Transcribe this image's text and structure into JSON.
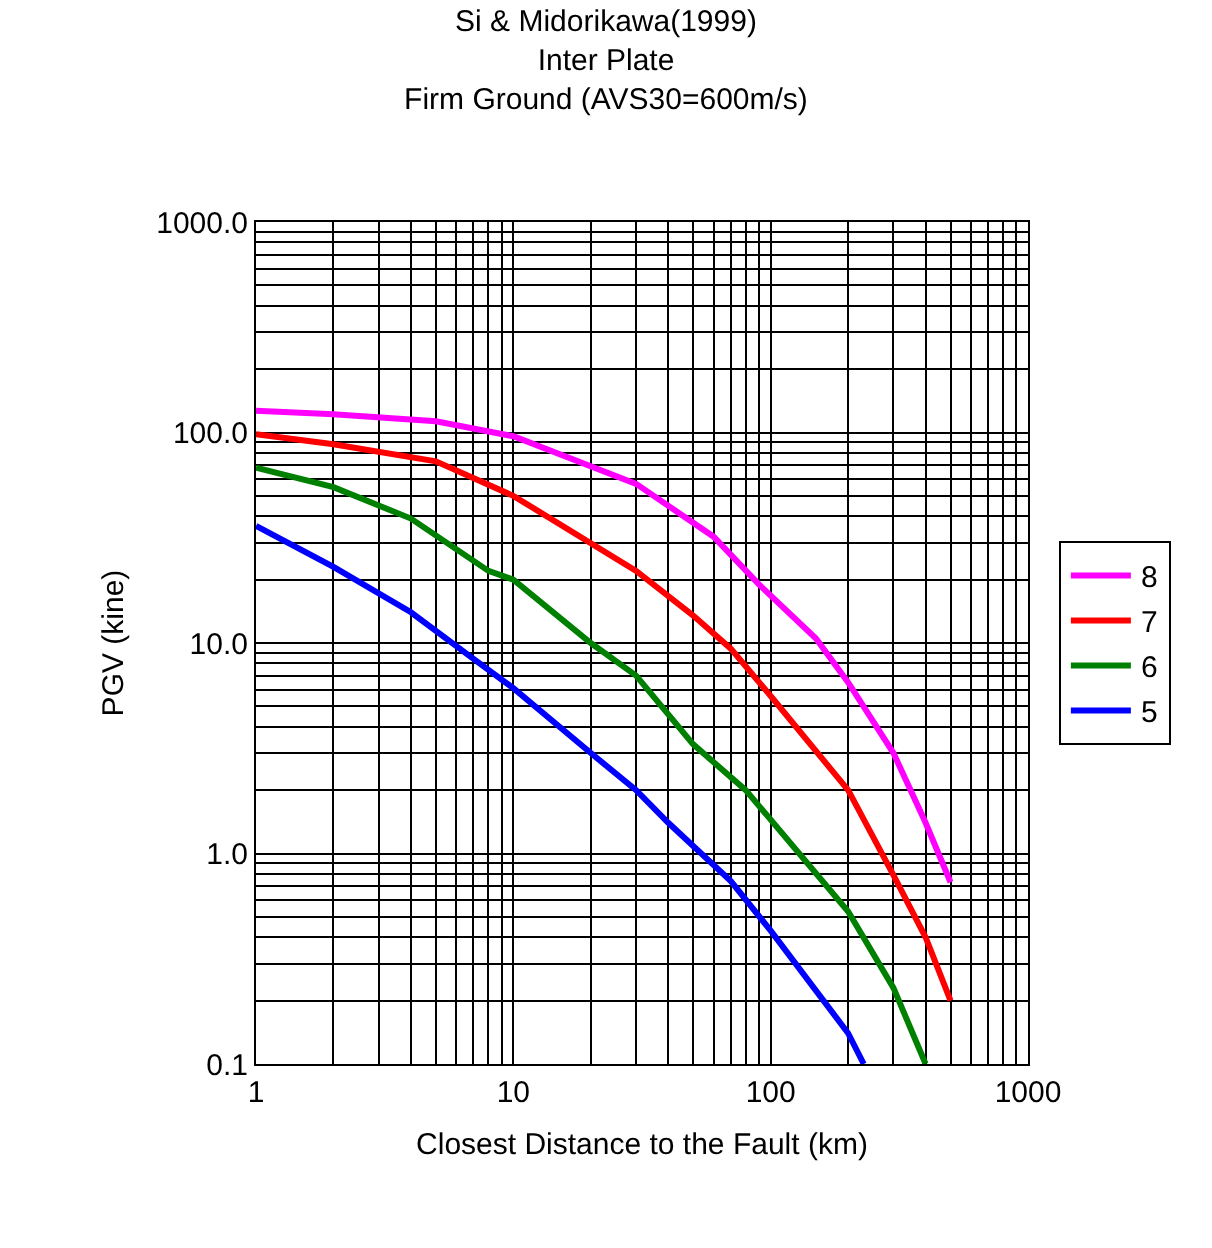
{
  "chart_data": {
    "type": "line",
    "title": "Si & Midorikawa(1999)\nInter Plate\nFirm Ground (AVS30=600m/s)",
    "xlabel": "Closest Distance to the Fault (km)",
    "ylabel": "PGV (kine)",
    "log": "xy",
    "grid": true,
    "legend": "right",
    "marker": "none",
    "line_style": "solid",
    "xlim": [
      1,
      1000
    ],
    "xticks": [
      1,
      10,
      100,
      1000
    ],
    "ylim": [
      0.1,
      1000
    ],
    "yticks": [
      {
        "value": 0.1,
        "label": "0.1"
      },
      {
        "value": 1,
        "label": "1.0"
      },
      {
        "value": 10,
        "label": "10.0"
      },
      {
        "value": 100,
        "label": "100.0"
      },
      {
        "value": 1000,
        "label": "1000.0"
      }
    ],
    "series": [
      {
        "name": "8",
        "color": "#ff00ff",
        "x": [
          1,
          2,
          5,
          10,
          30,
          60,
          90,
          150,
          200,
          300,
          400,
          500
        ],
        "values": [
          127,
          122,
          113,
          96,
          57,
          32,
          19,
          10.5,
          6.5,
          3.0,
          1.4,
          0.73
        ]
      },
      {
        "name": "7",
        "color": "#ff0000",
        "x": [
          1,
          2,
          5,
          10,
          30,
          50,
          70,
          100,
          200,
          300,
          400,
          500
        ],
        "values": [
          98,
          88,
          73,
          50,
          22,
          13.5,
          9.4,
          5.6,
          2.0,
          0.79,
          0.4,
          0.2
        ]
      },
      {
        "name": "6",
        "color": "#008000",
        "x": [
          1,
          2,
          4,
          8,
          10,
          20,
          30,
          50,
          80,
          200,
          300,
          400
        ],
        "values": [
          68,
          55,
          39,
          22,
          20,
          10,
          7.0,
          3.3,
          2.0,
          0.53,
          0.23,
          0.1
        ]
      },
      {
        "name": "5",
        "color": "#0000ff",
        "x": [
          1,
          2,
          4,
          7,
          10,
          20,
          30,
          40,
          70,
          100,
          200,
          230
        ],
        "values": [
          36,
          23,
          14,
          8.4,
          6.1,
          3.0,
          2.0,
          1.4,
          0.74,
          0.43,
          0.14,
          0.1
        ]
      }
    ]
  }
}
